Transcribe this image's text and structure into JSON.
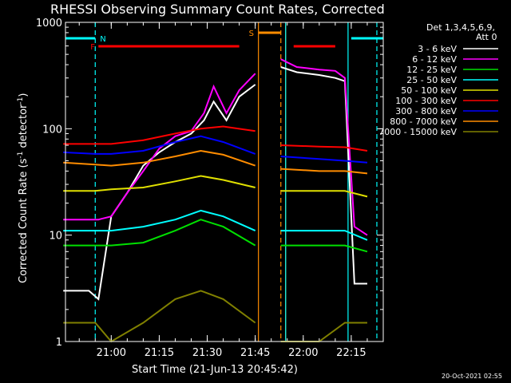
{
  "chart_data": {
    "type": "line",
    "title": "RHESSI Observing Summary Count Rates, Corrected",
    "xlabel": "Start Time (21-Jun-13 20:45:42)",
    "ylabel": "Corrected Count Rate (s⁻¹ detector⁻¹)",
    "ylabel_main": "Corrected Count Rate (s",
    "ylabel_sup1": "-1",
    "ylabel_mid": " detector",
    "ylabel_sup2": "-1",
    "ylabel_end": ")",
    "yscale": "log",
    "ylim": [
      1,
      1000
    ],
    "y_ticks": [
      {
        "value": 1,
        "label": "1"
      },
      {
        "value": 10,
        "label": "10"
      },
      {
        "value": 100,
        "label": "100"
      },
      {
        "value": 1000,
        "label": "1000"
      }
    ],
    "xlim": [
      "20:45:42",
      "22:25:00"
    ],
    "x_ticks": [
      {
        "value": "21:00",
        "label": "21:00"
      },
      {
        "value": "21:15",
        "label": "21:15"
      },
      {
        "value": "21:30",
        "label": "21:30"
      },
      {
        "value": "21:45",
        "label": "21:45"
      },
      {
        "value": "22:00",
        "label": "22:00"
      },
      {
        "value": "22:15",
        "label": "22:15"
      }
    ],
    "legend_header": [
      "Det 1,3,4,5,6,9,",
      "Att 0"
    ],
    "legend_placement": "right",
    "series": [
      {
        "name": "3 - 6 keV",
        "color": "#ffffff",
        "x": [
          "20:45",
          "20:53",
          "20:56",
          "21:00",
          "21:05",
          "21:10",
          "21:15",
          "21:20",
          "21:25",
          "21:29",
          "21:32",
          "21:36",
          "21:40",
          "21:45"
        ],
        "values": [
          3,
          3,
          2.5,
          15,
          25,
          45,
          60,
          75,
          90,
          120,
          180,
          120,
          200,
          260
        ],
        "x2": [
          "21:53",
          "21:58",
          "22:05",
          "22:10",
          "22:13",
          "22:16",
          "22:20"
        ],
        "values2": [
          380,
          340,
          320,
          300,
          280,
          3.5,
          3.5
        ]
      },
      {
        "name": "6 - 12 keV",
        "color": "#ff00ff",
        "x": [
          "20:45",
          "20:56",
          "21:00",
          "21:05",
          "21:10",
          "21:15",
          "21:20",
          "21:25",
          "21:29",
          "21:32",
          "21:36",
          "21:40",
          "21:45"
        ],
        "values": [
          14,
          14,
          15,
          25,
          40,
          65,
          85,
          95,
          140,
          250,
          140,
          230,
          330
        ],
        "x2": [
          "21:53",
          "21:58",
          "22:05",
          "22:10",
          "22:13",
          "22:16",
          "22:20"
        ],
        "values2": [
          450,
          380,
          360,
          350,
          300,
          12,
          10
        ]
      },
      {
        "name": "12 - 25 keV",
        "color": "#00e000",
        "x": [
          "20:45",
          "20:55",
          "21:00",
          "21:10",
          "21:20",
          "21:28",
          "21:35",
          "21:45"
        ],
        "values": [
          8,
          8,
          8,
          8.5,
          11,
          14,
          12,
          8
        ],
        "x2": [
          "21:53",
          "22:05",
          "22:13",
          "22:20"
        ],
        "values2": [
          8,
          8,
          8,
          7
        ]
      },
      {
        "name": "25 - 50 keV",
        "color": "#00ffff",
        "x": [
          "20:45",
          "20:55",
          "21:00",
          "21:10",
          "21:20",
          "21:28",
          "21:35",
          "21:45"
        ],
        "values": [
          11,
          11,
          11,
          12,
          14,
          17,
          15,
          11
        ],
        "x2": [
          "21:53",
          "22:05",
          "22:13",
          "22:20"
        ],
        "values2": [
          11,
          11,
          11,
          9
        ]
      },
      {
        "name": "50 - 100 keV",
        "color": "#e0e000",
        "x": [
          "20:45",
          "20:55",
          "21:00",
          "21:10",
          "21:20",
          "21:28",
          "21:35",
          "21:45"
        ],
        "values": [
          26,
          26,
          27,
          28,
          32,
          36,
          33,
          28
        ],
        "x2": [
          "21:53",
          "22:05",
          "22:13",
          "22:20"
        ],
        "values2": [
          26,
          26,
          26,
          23
        ]
      },
      {
        "name": "100 - 300 keV",
        "color": "#ff0000",
        "x": [
          "20:45",
          "20:55",
          "21:00",
          "21:10",
          "21:20",
          "21:28",
          "21:35",
          "21:45"
        ],
        "values": [
          72,
          72,
          72,
          78,
          90,
          100,
          105,
          95
        ],
        "x2": [
          "21:53",
          "22:05",
          "22:13",
          "22:20"
        ],
        "values2": [
          70,
          68,
          67,
          62
        ]
      },
      {
        "name": "300 - 800 keV",
        "color": "#0000ff",
        "x": [
          "20:45",
          "20:55",
          "21:00",
          "21:10",
          "21:20",
          "21:28",
          "21:35",
          "21:45"
        ],
        "values": [
          60,
          58,
          58,
          62,
          75,
          85,
          75,
          58
        ],
        "x2": [
          "21:53",
          "22:05",
          "22:13",
          "22:20"
        ],
        "values2": [
          55,
          52,
          50,
          48
        ]
      },
      {
        "name": "800 - 7000 keV",
        "color": "#ff8c00",
        "x": [
          "20:45",
          "20:55",
          "21:00",
          "21:10",
          "21:20",
          "21:28",
          "21:35",
          "21:45"
        ],
        "values": [
          48,
          46,
          45,
          48,
          55,
          62,
          57,
          45
        ],
        "x2": [
          "21:53",
          "22:05",
          "22:13",
          "22:20"
        ],
        "values2": [
          42,
          40,
          40,
          38
        ]
      },
      {
        "name": "7000 - 15000 keV",
        "color": "#808000",
        "x": [
          "20:45",
          "20:55",
          "21:00",
          "21:10",
          "21:20",
          "21:28",
          "21:35",
          "21:45"
        ],
        "values": [
          1.5,
          1.5,
          1,
          1.5,
          2.5,
          3,
          2.5,
          1.5
        ],
        "x2": [
          "21:53",
          "22:05",
          "22:13",
          "22:20"
        ],
        "values2": [
          1,
          1,
          1.5,
          1.5
        ]
      }
    ],
    "flags": [
      {
        "label": "N",
        "color": "#00ffff",
        "x_start": "20:45:42",
        "x_end": "20:55:00"
      },
      {
        "label": "F",
        "color": "#ff0000",
        "x_start": "20:56:00",
        "x_end": "21:40:00"
      },
      {
        "label": "S",
        "color": "#ff8c00",
        "x_start": "21:46:00",
        "x_end": "21:53:00"
      }
    ],
    "extra_flag_bars": [
      {
        "color": "#ff0000",
        "x_start": "21:57:00",
        "x_end": "22:10:00"
      },
      {
        "color": "#00ffff",
        "x_start": "22:15:00",
        "x_end": "22:25:00"
      }
    ],
    "vlines": [
      {
        "x": "20:55:00",
        "color": "#00ffff",
        "dashed": true
      },
      {
        "x": "21:46:00",
        "color": "#ff8c00",
        "dashed": false
      },
      {
        "x": "21:53:00",
        "color": "#ff8c00",
        "dashed": true
      },
      {
        "x": "21:54:30",
        "color": "#ff8c00",
        "dashed": false
      },
      {
        "x": "21:54:30",
        "color": "#00ffff",
        "dashed": false
      },
      {
        "x": "22:14:00",
        "color": "#00ffff",
        "dashed": false
      },
      {
        "x": "22:23:00",
        "color": "#00ffff",
        "dashed": true
      }
    ],
    "timestamp": "20-Oct-2021 02:55"
  }
}
